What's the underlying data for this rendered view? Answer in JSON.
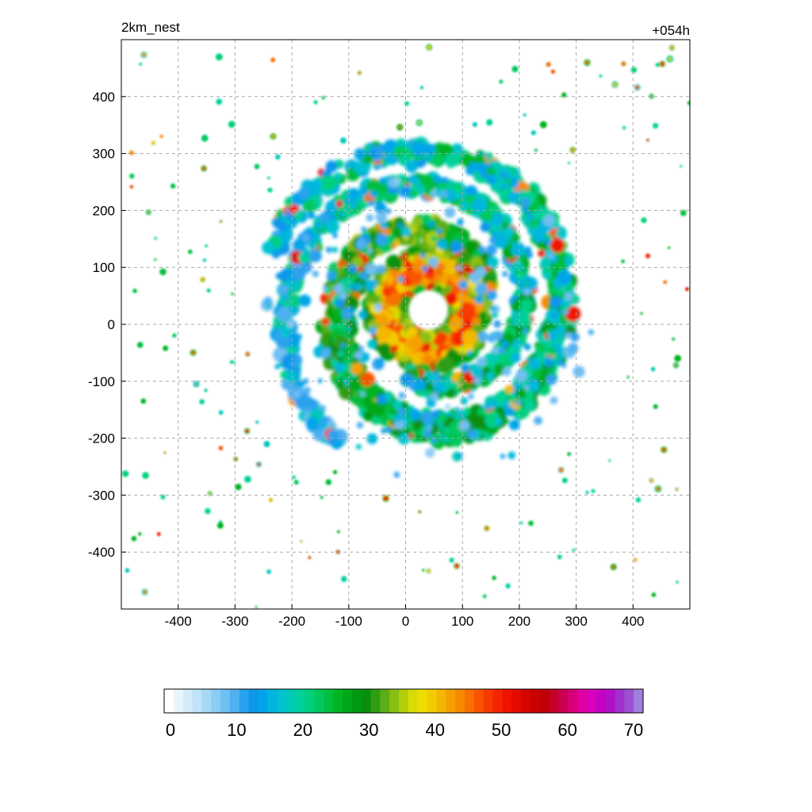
{
  "chart_data": {
    "type": "heatmap",
    "title_left": "2km_nest",
    "title_right": "+054h",
    "xlabel": "",
    "ylabel": "",
    "xlim": [
      -500,
      500
    ],
    "ylim": [
      -500,
      500
    ],
    "x_ticks": [
      -400,
      -300,
      -200,
      -100,
      0,
      100,
      200,
      300,
      400
    ],
    "y_ticks": [
      400,
      300,
      200,
      100,
      0,
      -100,
      -200,
      -300,
      -400
    ],
    "grid": true,
    "colorbar": {
      "min": 0,
      "max": 70,
      "tick_labels": [
        0,
        10,
        20,
        30,
        40,
        50,
        60,
        70
      ],
      "colors": [
        "#ffffff",
        "#eaf4fc",
        "#d4ecfa",
        "#bfe3f8",
        "#a6d8f6",
        "#8ccdf5",
        "#6fc0f3",
        "#4fb1f1",
        "#2aa2ee",
        "#0e96eb",
        "#00a4e8",
        "#00b5de",
        "#00c2cf",
        "#00c9b6",
        "#00d09a",
        "#00d07c",
        "#00c85d",
        "#00be3e",
        "#00b423",
        "#00a716",
        "#009a10",
        "#0a8f0c",
        "#2e9d14",
        "#5dae16",
        "#89bf12",
        "#b3cf0c",
        "#d8dc06",
        "#eede00",
        "#f2cc00",
        "#f4b700",
        "#f5a000",
        "#f68900",
        "#f77000",
        "#f85400",
        "#f83a00",
        "#f62400",
        "#ef1400",
        "#e30a00",
        "#d60500",
        "#c80200",
        "#c00008",
        "#c4002a",
        "#cc0050",
        "#d80078",
        "#e000a0",
        "#d800b8",
        "#c400c2",
        "#b010c8",
        "#a030cc",
        "#9a50d0",
        "#a080dc"
      ]
    },
    "features": [
      {
        "name": "eye",
        "x": 40,
        "y": 25,
        "radius": 35
      },
      {
        "name": "eyewall",
        "x": 40,
        "y": 25,
        "inner_radius": 35,
        "outer_radius": 105,
        "peak": 52
      },
      {
        "name": "outer rainband",
        "shape": "spiral",
        "peak": 50
      }
    ]
  }
}
